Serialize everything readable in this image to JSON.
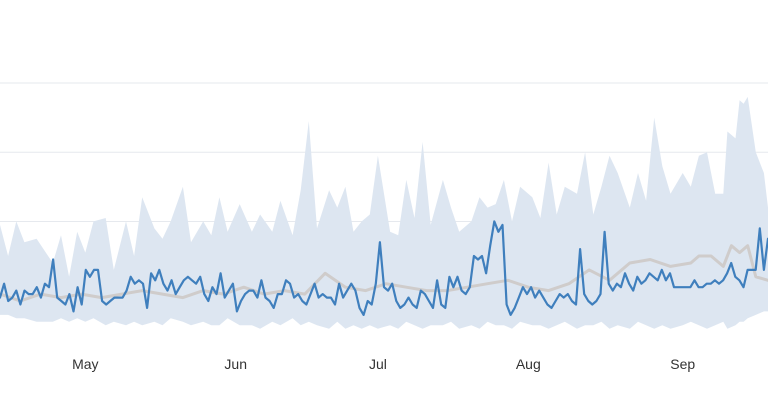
{
  "chart_data": {
    "type": "line",
    "title": "",
    "xlabel": "",
    "ylabel": "",
    "x_range": [
      0,
      189
    ],
    "ylim": [
      0,
      100
    ],
    "grid": true,
    "legend": "none",
    "x_ticks": [
      {
        "label": "May",
        "x": 21
      },
      {
        "label": "Jun",
        "x": 58
      },
      {
        "label": "Jul",
        "x": 93
      },
      {
        "label": "Aug",
        "x": 130
      },
      {
        "label": "Sep",
        "x": 168
      }
    ],
    "y_gridlines": [
      16,
      36,
      56,
      76
    ],
    "colors": {
      "band": "#dde6f1",
      "baseline": "#cfcccb",
      "series": "#3f7fbd",
      "grid": "#e6e9ee"
    },
    "band": {
      "x": [
        0,
        2,
        4,
        6,
        9,
        13,
        15,
        17,
        19,
        21,
        23,
        26,
        28,
        31,
        33,
        35,
        38,
        40,
        42,
        45,
        47,
        50,
        52,
        54,
        56,
        59,
        62,
        64,
        67,
        69,
        72,
        74,
        76,
        78,
        81,
        83,
        85,
        87,
        89,
        91,
        93,
        96,
        98,
        100,
        102,
        104,
        106,
        109,
        111,
        113,
        116,
        118,
        120,
        122,
        124,
        126,
        128,
        131,
        133,
        135,
        137,
        139,
        142,
        144,
        146,
        148,
        150,
        152,
        155,
        157,
        159,
        161,
        163,
        165,
        168,
        170,
        172,
        174,
        176,
        178,
        179,
        181,
        182,
        183,
        184,
        186,
        188,
        189
      ],
      "upper": [
        35,
        26,
        36,
        30,
        31,
        24,
        32,
        20,
        33,
        27,
        36,
        37,
        22,
        36,
        26,
        43,
        34,
        31,
        36,
        46,
        30,
        36,
        32,
        43,
        33,
        41,
        33,
        38,
        33,
        42,
        32,
        45,
        65,
        34,
        45,
        40,
        46,
        33,
        36,
        38,
        55,
        33,
        32,
        48,
        37,
        59,
        35,
        48,
        40,
        33,
        36,
        43,
        40,
        41,
        48,
        36,
        46,
        43,
        37,
        53,
        38,
        46,
        44,
        56,
        38,
        46,
        55,
        50,
        40,
        50,
        42,
        66,
        52,
        44,
        50,
        46,
        55,
        56,
        44,
        44,
        62,
        60,
        71,
        70,
        72,
        56,
        50,
        40
      ],
      "lower": [
        9,
        9,
        8,
        8,
        7,
        7,
        8,
        7,
        8,
        7,
        8,
        6,
        7,
        6,
        7,
        6,
        7,
        6,
        8,
        7,
        6,
        7,
        6,
        6,
        8,
        6,
        6,
        5,
        7,
        6,
        8,
        6,
        7,
        6,
        5,
        7,
        5,
        6,
        5,
        6,
        5,
        6,
        5,
        7,
        6,
        5,
        6,
        6,
        7,
        5,
        6,
        5,
        7,
        6,
        6,
        5,
        7,
        6,
        6,
        5,
        6,
        7,
        5,
        6,
        6,
        7,
        5,
        6,
        5,
        7,
        6,
        5,
        6,
        5,
        6,
        7,
        6,
        5,
        6,
        7,
        5,
        6,
        7,
        7,
        8,
        9,
        10,
        10
      ]
    },
    "baseline": {
      "x": [
        0,
        5,
        10,
        15,
        20,
        25,
        30,
        35,
        40,
        45,
        50,
        55,
        60,
        65,
        70,
        75,
        80,
        85,
        90,
        95,
        100,
        105,
        110,
        115,
        120,
        125,
        130,
        135,
        140,
        145,
        150,
        155,
        160,
        165,
        170,
        172,
        175,
        178,
        180,
        182,
        184,
        186,
        189
      ],
      "values": [
        15,
        13,
        15,
        14,
        15,
        14,
        15,
        16,
        15,
        14,
        16,
        15,
        17,
        15,
        16,
        15,
        21,
        17,
        16,
        18,
        17,
        16,
        16,
        17,
        18,
        19,
        17,
        16,
        18,
        22,
        19,
        24,
        25,
        23,
        24,
        26,
        26,
        23,
        29,
        27,
        29,
        20,
        19
      ]
    },
    "series": [
      {
        "values": [
          14,
          18,
          13,
          14,
          16,
          12,
          16,
          15,
          15,
          17,
          14,
          18,
          17,
          25,
          14,
          13,
          12,
          15,
          10,
          17,
          12,
          22,
          20,
          22,
          22,
          13,
          12,
          13,
          14,
          14,
          14,
          16,
          20,
          18,
          19,
          18,
          11,
          21,
          19,
          22,
          18,
          16,
          19,
          15,
          17,
          19,
          20,
          19,
          18,
          20,
          15,
          13,
          17,
          15,
          21,
          14,
          16,
          18,
          10,
          13,
          15,
          16,
          16,
          14,
          19,
          14,
          13,
          11,
          15,
          15,
          19,
          18,
          14,
          15,
          13,
          12,
          15,
          18,
          14,
          15,
          14,
          14,
          12,
          18,
          14,
          16,
          18,
          16,
          11,
          9,
          13,
          12,
          18,
          30,
          17,
          16,
          18,
          13,
          11,
          12,
          14,
          12,
          11,
          16,
          15,
          13,
          11,
          19,
          12,
          11,
          20,
          17,
          20,
          16,
          15,
          17,
          26,
          25,
          26,
          21,
          29,
          36,
          33,
          35,
          12,
          9,
          11,
          14,
          17,
          15,
          17,
          14,
          16,
          14,
          12,
          11,
          13,
          15,
          14,
          15,
          13,
          12,
          28,
          15,
          13,
          12,
          13,
          15,
          33,
          18,
          16,
          18,
          17,
          21,
          18,
          16,
          20,
          18,
          19,
          21,
          20,
          19,
          22,
          19,
          21,
          17,
          17,
          17,
          17,
          17,
          19,
          17,
          17,
          18,
          18,
          19,
          18,
          19,
          21,
          24,
          20,
          19,
          17,
          22,
          22,
          22,
          34,
          22,
          31
        ]
      }
    ]
  }
}
